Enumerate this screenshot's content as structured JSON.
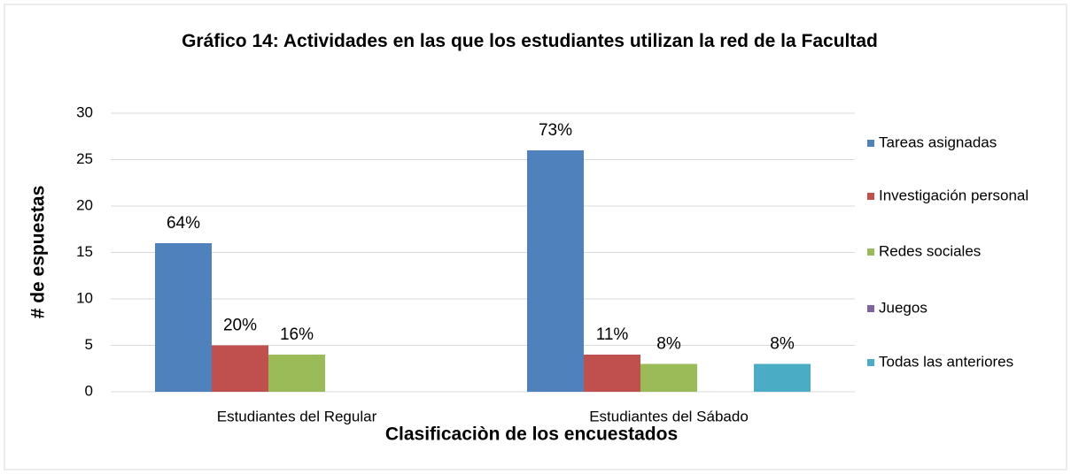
{
  "chart_data": {
    "type": "bar",
    "title": "Gráfico  14: Actividades en las que los estudiantes utilizan la red de la Facultad",
    "x_label": "Clasificaciòn de los encuestados",
    "y_label": "# de espuestas",
    "categories": [
      "Estudiantes del Regular",
      "Estudiantes del Sábado"
    ],
    "series": [
      {
        "name": "Tareas asignadas",
        "color": "#4f81bd",
        "values": [
          16,
          26
        ],
        "value_labels": [
          "64%",
          "73%"
        ]
      },
      {
        "name": "Investigación personal",
        "color": "#c0504d",
        "values": [
          5,
          4
        ],
        "value_labels": [
          "20%",
          "11%"
        ]
      },
      {
        "name": "Redes sociales",
        "color": "#9bbb59",
        "values": [
          4,
          3
        ],
        "value_labels": [
          "16%",
          "8%"
        ]
      },
      {
        "name": "Juegos",
        "color": "#8064a2",
        "values": [
          0,
          0
        ]
      },
      {
        "name": "Todas las anteriores",
        "color": "#4bacc6",
        "values": [
          0,
          3
        ],
        "value_labels": [
          null,
          "8%"
        ]
      }
    ],
    "ylim": [
      0,
      30
    ],
    "yticks": [
      0,
      5,
      10,
      15,
      20,
      25,
      30
    ],
    "grid": true,
    "legend": "right"
  }
}
